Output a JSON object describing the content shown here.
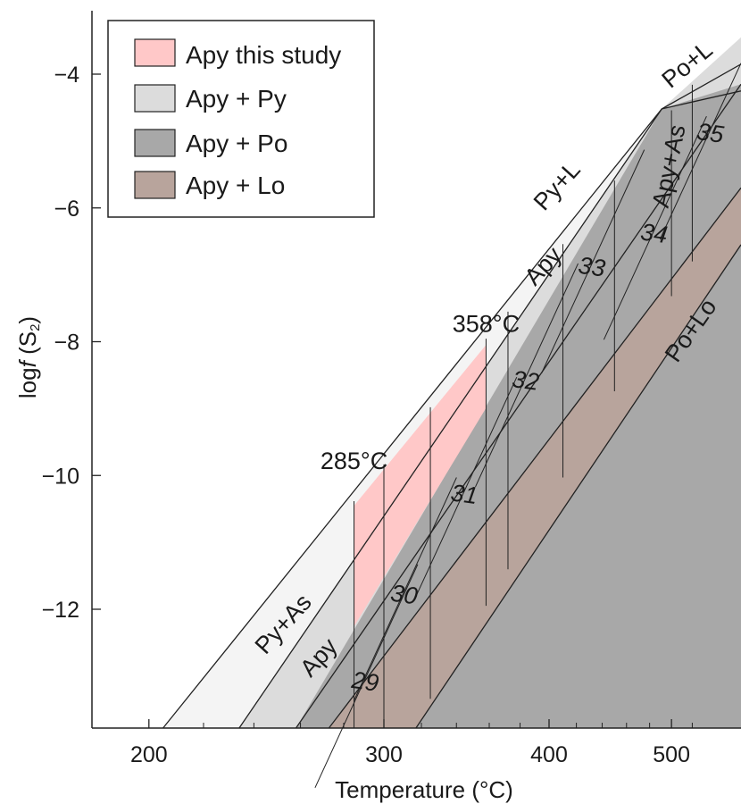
{
  "chart_data": {
    "type": "phase-diagram",
    "title": "",
    "xlabel": "Temperature (°C)",
    "ylabel": "log f (S2)",
    "ylabel_parts": {
      "prefix": "log",
      "italic": "f",
      "open": " (S",
      "sub": "2",
      "close": ")"
    },
    "x_scale": "reciprocal-temperature",
    "xlim": [
      200,
      530
    ],
    "ylim": [
      -13.7,
      -2.8
    ],
    "x_ticks": [
      200,
      300,
      400,
      500
    ],
    "x_tick_labels": [
      "200",
      "300",
      "400",
      "500"
    ],
    "y_ticks": [
      -4,
      -6,
      -8,
      -10,
      -12
    ],
    "y_tick_labels": [
      "−4",
      "−6",
      "−8",
      "−10",
      "−12"
    ],
    "grid": false,
    "legend": {
      "placement": "top-left",
      "entries": [
        {
          "label": "Apy this study",
          "color": "#ffc8c8"
        },
        {
          "label": "Apy + Py",
          "color": "#dcdcdc"
        },
        {
          "label": "Apy + Po",
          "color": "#a8a8a8"
        },
        {
          "label": "Apy + Lo",
          "color": "#b8a49c"
        }
      ]
    },
    "boundaries": {
      "py_as_upper": [
        [
          205,
          -13.7
        ],
        [
          491,
          -4.52
        ]
      ],
      "upper_stability_limit": [
        [
          205,
          -13.7
        ],
        [
          491,
          -4.52
        ],
        [
          530,
          -3.85
        ]
      ],
      "apy_py_lower": [
        [
          234,
          -13.7
        ],
        [
          491,
          -4.52
        ]
      ],
      "apy_po_lower": [
        [
          258,
          -13.7
        ],
        [
          530,
          -4.15
        ]
      ],
      "apy_lo_upper": [
        [
          273,
          -13.7
        ],
        [
          530,
          -5.7
        ]
      ],
      "apy_lo_lower": [
        [
          317,
          -13.7
        ],
        [
          530,
          -6.55
        ]
      ]
    },
    "regions": [
      {
        "name": "Apy this study",
        "color": "#ffc8c8",
        "temperature_range": [
          285,
          358
        ]
      }
    ],
    "annotations": [
      {
        "text": "285°C",
        "x": 285,
        "y": -9.9
      },
      {
        "text": "358°C",
        "x": 358,
        "y": -7.85
      },
      {
        "text": "Py+As",
        "x": 255,
        "y": -12.3,
        "rotation": -48
      },
      {
        "text": "Apy",
        "x": 271,
        "y": -12.8,
        "rotation": -48
      },
      {
        "text": "Apy",
        "x": 400,
        "y": -6.95,
        "rotation": -48
      },
      {
        "text": "Py+L",
        "x": 410,
        "y": -5.75,
        "rotation": -48
      },
      {
        "text": "Po+L",
        "x": 520,
        "y": -3.95,
        "rotation": -40
      },
      {
        "text": "Apy+As",
        "x": 505,
        "y": -5.4,
        "rotation": -78
      },
      {
        "text": "Po+Lo",
        "x": 525,
        "y": -7.9,
        "rotation": -55
      }
    ],
    "isopleths": [
      {
        "label": "29",
        "label_x": 290,
        "label_y": -13.2
      },
      {
        "label": "30",
        "label_x": 310,
        "label_y": -11.9
      },
      {
        "label": "31",
        "label_x": 344,
        "label_y": -10.4
      },
      {
        "label": "32",
        "label_x": 383,
        "label_y": -8.7
      },
      {
        "label": "33",
        "label_x": 431,
        "label_y": -7.0
      },
      {
        "label": "34",
        "label_x": 483,
        "label_y": -6.5
      },
      {
        "label": "35",
        "label_x": 537,
        "label_y": -5.0
      }
    ]
  }
}
